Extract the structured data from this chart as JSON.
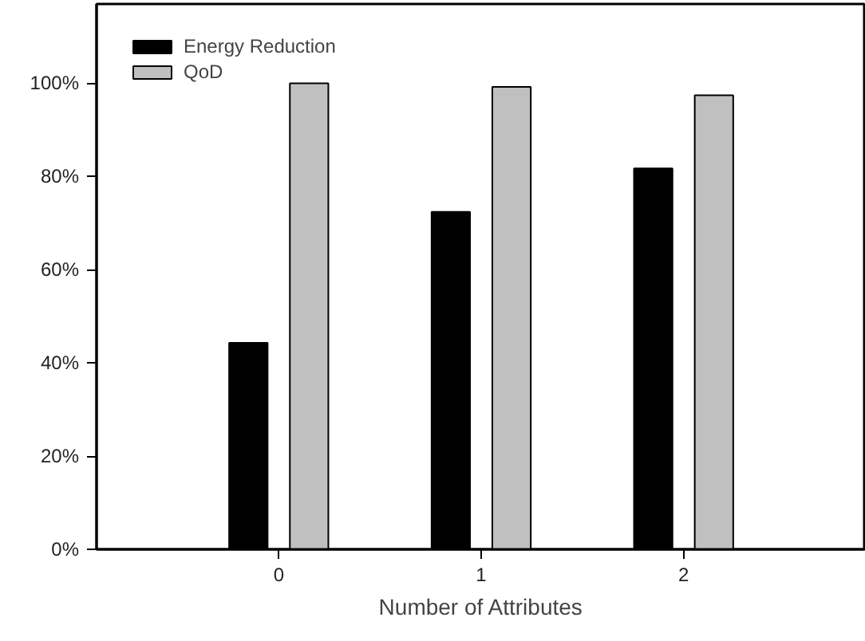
{
  "chart_data": {
    "type": "bar",
    "xlabel": "Number of Attributes",
    "categories": [
      "0",
      "1",
      "2"
    ],
    "series": [
      {
        "name": "Energy Reduction",
        "color": "#000000",
        "values": [
          44.3,
          72.4,
          81.7
        ]
      },
      {
        "name": "QoD",
        "color": "#c0c0c0",
        "values": [
          100,
          99.2,
          97.4
        ]
      }
    ],
    "ylim": [
      0,
      117
    ],
    "yticks": [
      {
        "value": 0,
        "label": "0%"
      },
      {
        "value": 20,
        "label": "20%"
      },
      {
        "value": 40,
        "label": "40%"
      },
      {
        "value": 60,
        "label": "60%"
      },
      {
        "value": 80,
        "label": "80%"
      },
      {
        "value": 100,
        "label": "100%"
      }
    ],
    "grid": false,
    "legend": "top left"
  }
}
